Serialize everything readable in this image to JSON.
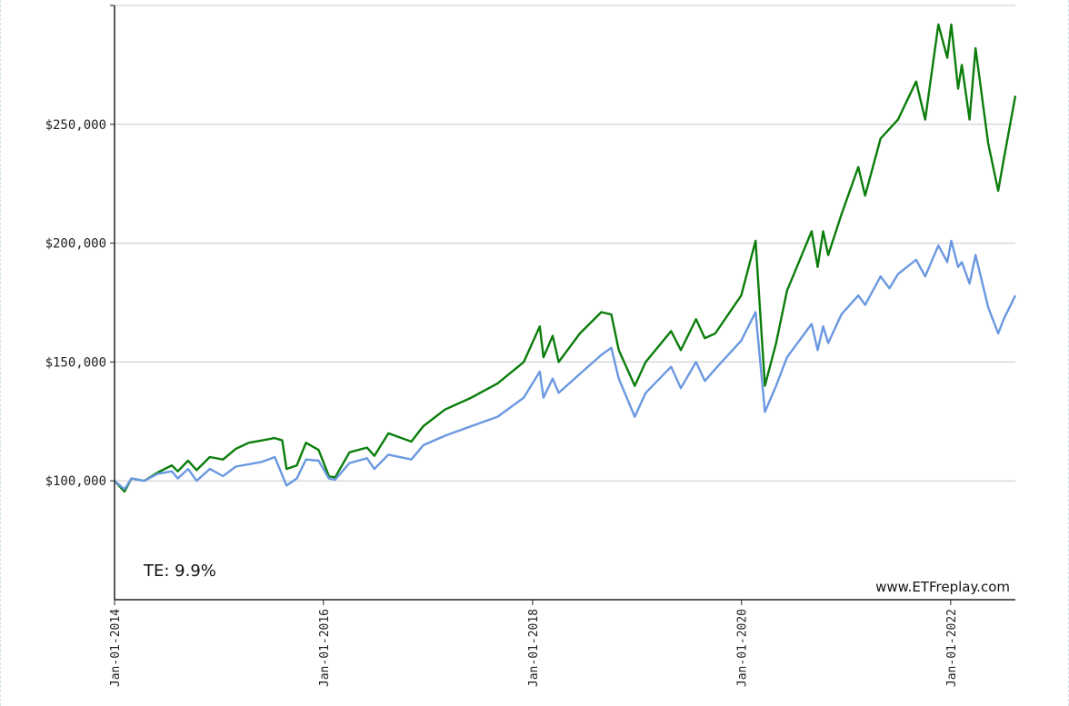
{
  "chart_data": {
    "type": "line",
    "title": "",
    "xlabel": "",
    "ylabel": "",
    "xlim": [
      "2014-01-01",
      "2022-08-15"
    ],
    "ylim": [
      50000,
      300000
    ],
    "yticks": [
      100000,
      150000,
      200000,
      250000
    ],
    "ytick_labels": [
      "$100,000",
      "$150,000",
      "$200,000",
      "$250,000"
    ],
    "xticks": [
      "2014-01-01",
      "2016-01-01",
      "2018-01-01",
      "2020-01-01",
      "2022-01-01"
    ],
    "xtick_labels": [
      "Jan-01-2014",
      "Jan-01-2016",
      "Jan-01-2018",
      "Jan-01-2020",
      "Jan-01-2022"
    ],
    "grid": "horizontal",
    "legend": "none",
    "series": [
      {
        "color": "#0a7d0a",
        "points": [
          [
            "2014-01-01",
            100000
          ],
          [
            "2014-02-05",
            95500
          ],
          [
            "2014-03-01",
            101000
          ],
          [
            "2014-04-15",
            100000
          ],
          [
            "2014-06-01",
            103500
          ],
          [
            "2014-07-20",
            106500
          ],
          [
            "2014-08-10",
            104000
          ],
          [
            "2014-09-15",
            108500
          ],
          [
            "2014-10-15",
            104500
          ],
          [
            "2014-11-30",
            110000
          ],
          [
            "2015-01-15",
            109000
          ],
          [
            "2015-03-01",
            113500
          ],
          [
            "2015-04-15",
            116000
          ],
          [
            "2015-06-01",
            117000
          ],
          [
            "2015-07-15",
            118000
          ],
          [
            "2015-08-10",
            117000
          ],
          [
            "2015-08-25",
            105000
          ],
          [
            "2015-09-30",
            106500
          ],
          [
            "2015-11-01",
            116000
          ],
          [
            "2015-12-15",
            113000
          ],
          [
            "2016-01-20",
            102000
          ],
          [
            "2016-02-11",
            101500
          ],
          [
            "2016-04-01",
            112000
          ],
          [
            "2016-06-01",
            114000
          ],
          [
            "2016-06-27",
            110500
          ],
          [
            "2016-08-15",
            120000
          ],
          [
            "2016-11-03",
            116500
          ],
          [
            "2016-12-15",
            123000
          ],
          [
            "2017-03-01",
            130000
          ],
          [
            "2017-06-01",
            135000
          ],
          [
            "2017-09-01",
            141000
          ],
          [
            "2017-12-01",
            150000
          ],
          [
            "2018-01-26",
            165000
          ],
          [
            "2018-02-08",
            152000
          ],
          [
            "2018-03-12",
            161000
          ],
          [
            "2018-04-02",
            150000
          ],
          [
            "2018-06-15",
            162000
          ],
          [
            "2018-08-29",
            171000
          ],
          [
            "2018-10-03",
            170000
          ],
          [
            "2018-10-29",
            155000
          ],
          [
            "2018-12-24",
            140000
          ],
          [
            "2019-01-31",
            150000
          ],
          [
            "2019-04-30",
            163000
          ],
          [
            "2019-06-03",
            155000
          ],
          [
            "2019-07-26",
            168000
          ],
          [
            "2019-08-26",
            160000
          ],
          [
            "2019-10-01",
            162000
          ],
          [
            "2019-12-31",
            178000
          ],
          [
            "2020-02-19",
            201000
          ],
          [
            "2020-03-23",
            140000
          ],
          [
            "2020-05-01",
            158000
          ],
          [
            "2020-06-08",
            180000
          ],
          [
            "2020-09-02",
            205000
          ],
          [
            "2020-09-23",
            190000
          ],
          [
            "2020-10-12",
            205000
          ],
          [
            "2020-10-30",
            195000
          ],
          [
            "2020-12-15",
            212000
          ],
          [
            "2021-02-12",
            232000
          ],
          [
            "2021-03-08",
            220000
          ],
          [
            "2021-05-01",
            244000
          ],
          [
            "2021-07-01",
            252000
          ],
          [
            "2021-09-02",
            268000
          ],
          [
            "2021-10-04",
            252000
          ],
          [
            "2021-11-19",
            292000
          ],
          [
            "2021-12-20",
            278000
          ],
          [
            "2022-01-03",
            292000
          ],
          [
            "2022-01-27",
            265000
          ],
          [
            "2022-02-09",
            275000
          ],
          [
            "2022-03-08",
            252000
          ],
          [
            "2022-03-29",
            282000
          ],
          [
            "2022-05-12",
            242000
          ],
          [
            "2022-06-16",
            222000
          ],
          [
            "2022-07-05",
            235000
          ],
          [
            "2022-08-15",
            262000
          ]
        ]
      },
      {
        "color": "#6a98e0",
        "points": [
          [
            "2014-01-01",
            100000
          ],
          [
            "2014-02-05",
            96500
          ],
          [
            "2014-03-01",
            101000
          ],
          [
            "2014-04-15",
            100000
          ],
          [
            "2014-06-01",
            103000
          ],
          [
            "2014-07-20",
            104000
          ],
          [
            "2014-08-10",
            101000
          ],
          [
            "2014-09-15",
            105000
          ],
          [
            "2014-10-15",
            100000
          ],
          [
            "2014-11-30",
            105000
          ],
          [
            "2015-01-15",
            102000
          ],
          [
            "2015-03-01",
            106000
          ],
          [
            "2015-06-01",
            108000
          ],
          [
            "2015-07-15",
            110000
          ],
          [
            "2015-08-25",
            98000
          ],
          [
            "2015-09-30",
            101000
          ],
          [
            "2015-11-01",
            109000
          ],
          [
            "2015-12-15",
            108500
          ],
          [
            "2016-01-20",
            101000
          ],
          [
            "2016-02-11",
            100500
          ],
          [
            "2016-04-01",
            107500
          ],
          [
            "2016-06-01",
            109500
          ],
          [
            "2016-06-27",
            105000
          ],
          [
            "2016-08-15",
            111000
          ],
          [
            "2016-11-03",
            109000
          ],
          [
            "2016-12-15",
            115000
          ],
          [
            "2017-03-01",
            119000
          ],
          [
            "2017-06-01",
            123000
          ],
          [
            "2017-09-01",
            127000
          ],
          [
            "2017-12-01",
            135000
          ],
          [
            "2018-01-26",
            146000
          ],
          [
            "2018-02-08",
            135000
          ],
          [
            "2018-03-12",
            143000
          ],
          [
            "2018-04-02",
            137000
          ],
          [
            "2018-06-15",
            145000
          ],
          [
            "2018-08-29",
            153000
          ],
          [
            "2018-10-03",
            156000
          ],
          [
            "2018-10-29",
            143000
          ],
          [
            "2018-12-24",
            127000
          ],
          [
            "2019-01-31",
            137000
          ],
          [
            "2019-04-30",
            148000
          ],
          [
            "2019-06-03",
            139000
          ],
          [
            "2019-07-26",
            150000
          ],
          [
            "2019-08-26",
            142000
          ],
          [
            "2019-10-01",
            147000
          ],
          [
            "2019-12-31",
            159000
          ],
          [
            "2020-02-19",
            171000
          ],
          [
            "2020-03-23",
            129000
          ],
          [
            "2020-05-01",
            140000
          ],
          [
            "2020-06-08",
            152000
          ],
          [
            "2020-09-02",
            166000
          ],
          [
            "2020-09-23",
            155000
          ],
          [
            "2020-10-12",
            165000
          ],
          [
            "2020-10-30",
            158000
          ],
          [
            "2020-12-15",
            170000
          ],
          [
            "2021-02-12",
            178000
          ],
          [
            "2021-03-08",
            174000
          ],
          [
            "2021-05-01",
            186000
          ],
          [
            "2021-06-01",
            181000
          ],
          [
            "2021-07-01",
            187000
          ],
          [
            "2021-09-02",
            193000
          ],
          [
            "2021-10-04",
            186000
          ],
          [
            "2021-11-19",
            199000
          ],
          [
            "2021-12-20",
            192000
          ],
          [
            "2022-01-03",
            201000
          ],
          [
            "2022-01-27",
            190000
          ],
          [
            "2022-02-09",
            192000
          ],
          [
            "2022-03-08",
            183000
          ],
          [
            "2022-03-29",
            195000
          ],
          [
            "2022-05-12",
            173000
          ],
          [
            "2022-06-16",
            162000
          ],
          [
            "2022-07-05",
            168000
          ],
          [
            "2022-08-15",
            178000
          ]
        ]
      }
    ],
    "annotations": {
      "te": "TE:  9.9%",
      "watermark": "www.ETFreplay.com"
    }
  }
}
